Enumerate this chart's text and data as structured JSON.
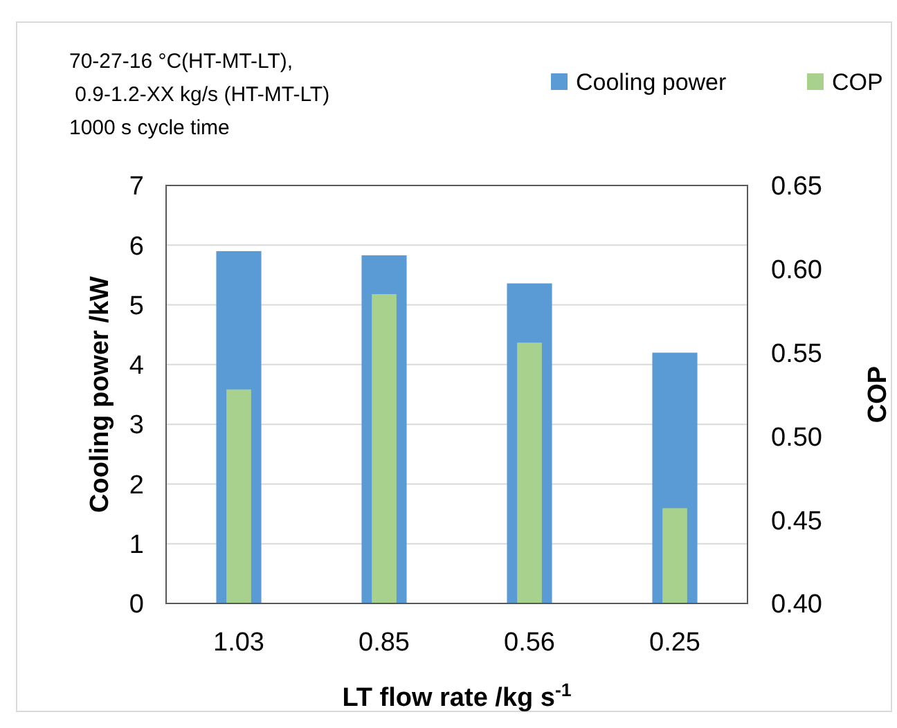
{
  "chart_data": {
    "type": "bar",
    "xlabel": "LT flow rate /kg s$^{-1}$",
    "ylabel": "Cooling power /kW",
    "y2label": "COP",
    "annotations": [
      "70-27-16 °C(HT-MT-LT),",
      " 0.9-1.2-XX kg/s (HT-MT-LT)",
      "1000 s cycle time"
    ],
    "categories": [
      "1.03",
      "0.85",
      "0.56",
      "0.25"
    ],
    "series": [
      {
        "name": "Cooling power",
        "color": "#5b9bd5",
        "values": [
          5.9,
          5.83,
          5.36,
          4.2
        ]
      },
      {
        "name": "COP",
        "color": "#a9d18e",
        "values": [
          0.528,
          0.585,
          0.556,
          0.457
        ],
        "axis": "y2"
      }
    ],
    "ylim": [
      0,
      7
    ],
    "yticks": [
      0,
      1,
      2,
      3,
      4,
      5,
      6,
      7
    ],
    "y2lim": [
      0.4,
      0.65
    ],
    "y2ticks": [
      {
        "value": 0.4,
        "label": "0.40"
      },
      {
        "value": 0.45,
        "label": "0.45"
      },
      {
        "value": 0.5,
        "label": "0.50"
      },
      {
        "value": 0.55,
        "label": "0.55"
      },
      {
        "value": 0.6,
        "label": "0.60"
      },
      {
        "value": 0.65,
        "label": "0.65"
      }
    ],
    "grid": "y",
    "legend": "top right"
  }
}
